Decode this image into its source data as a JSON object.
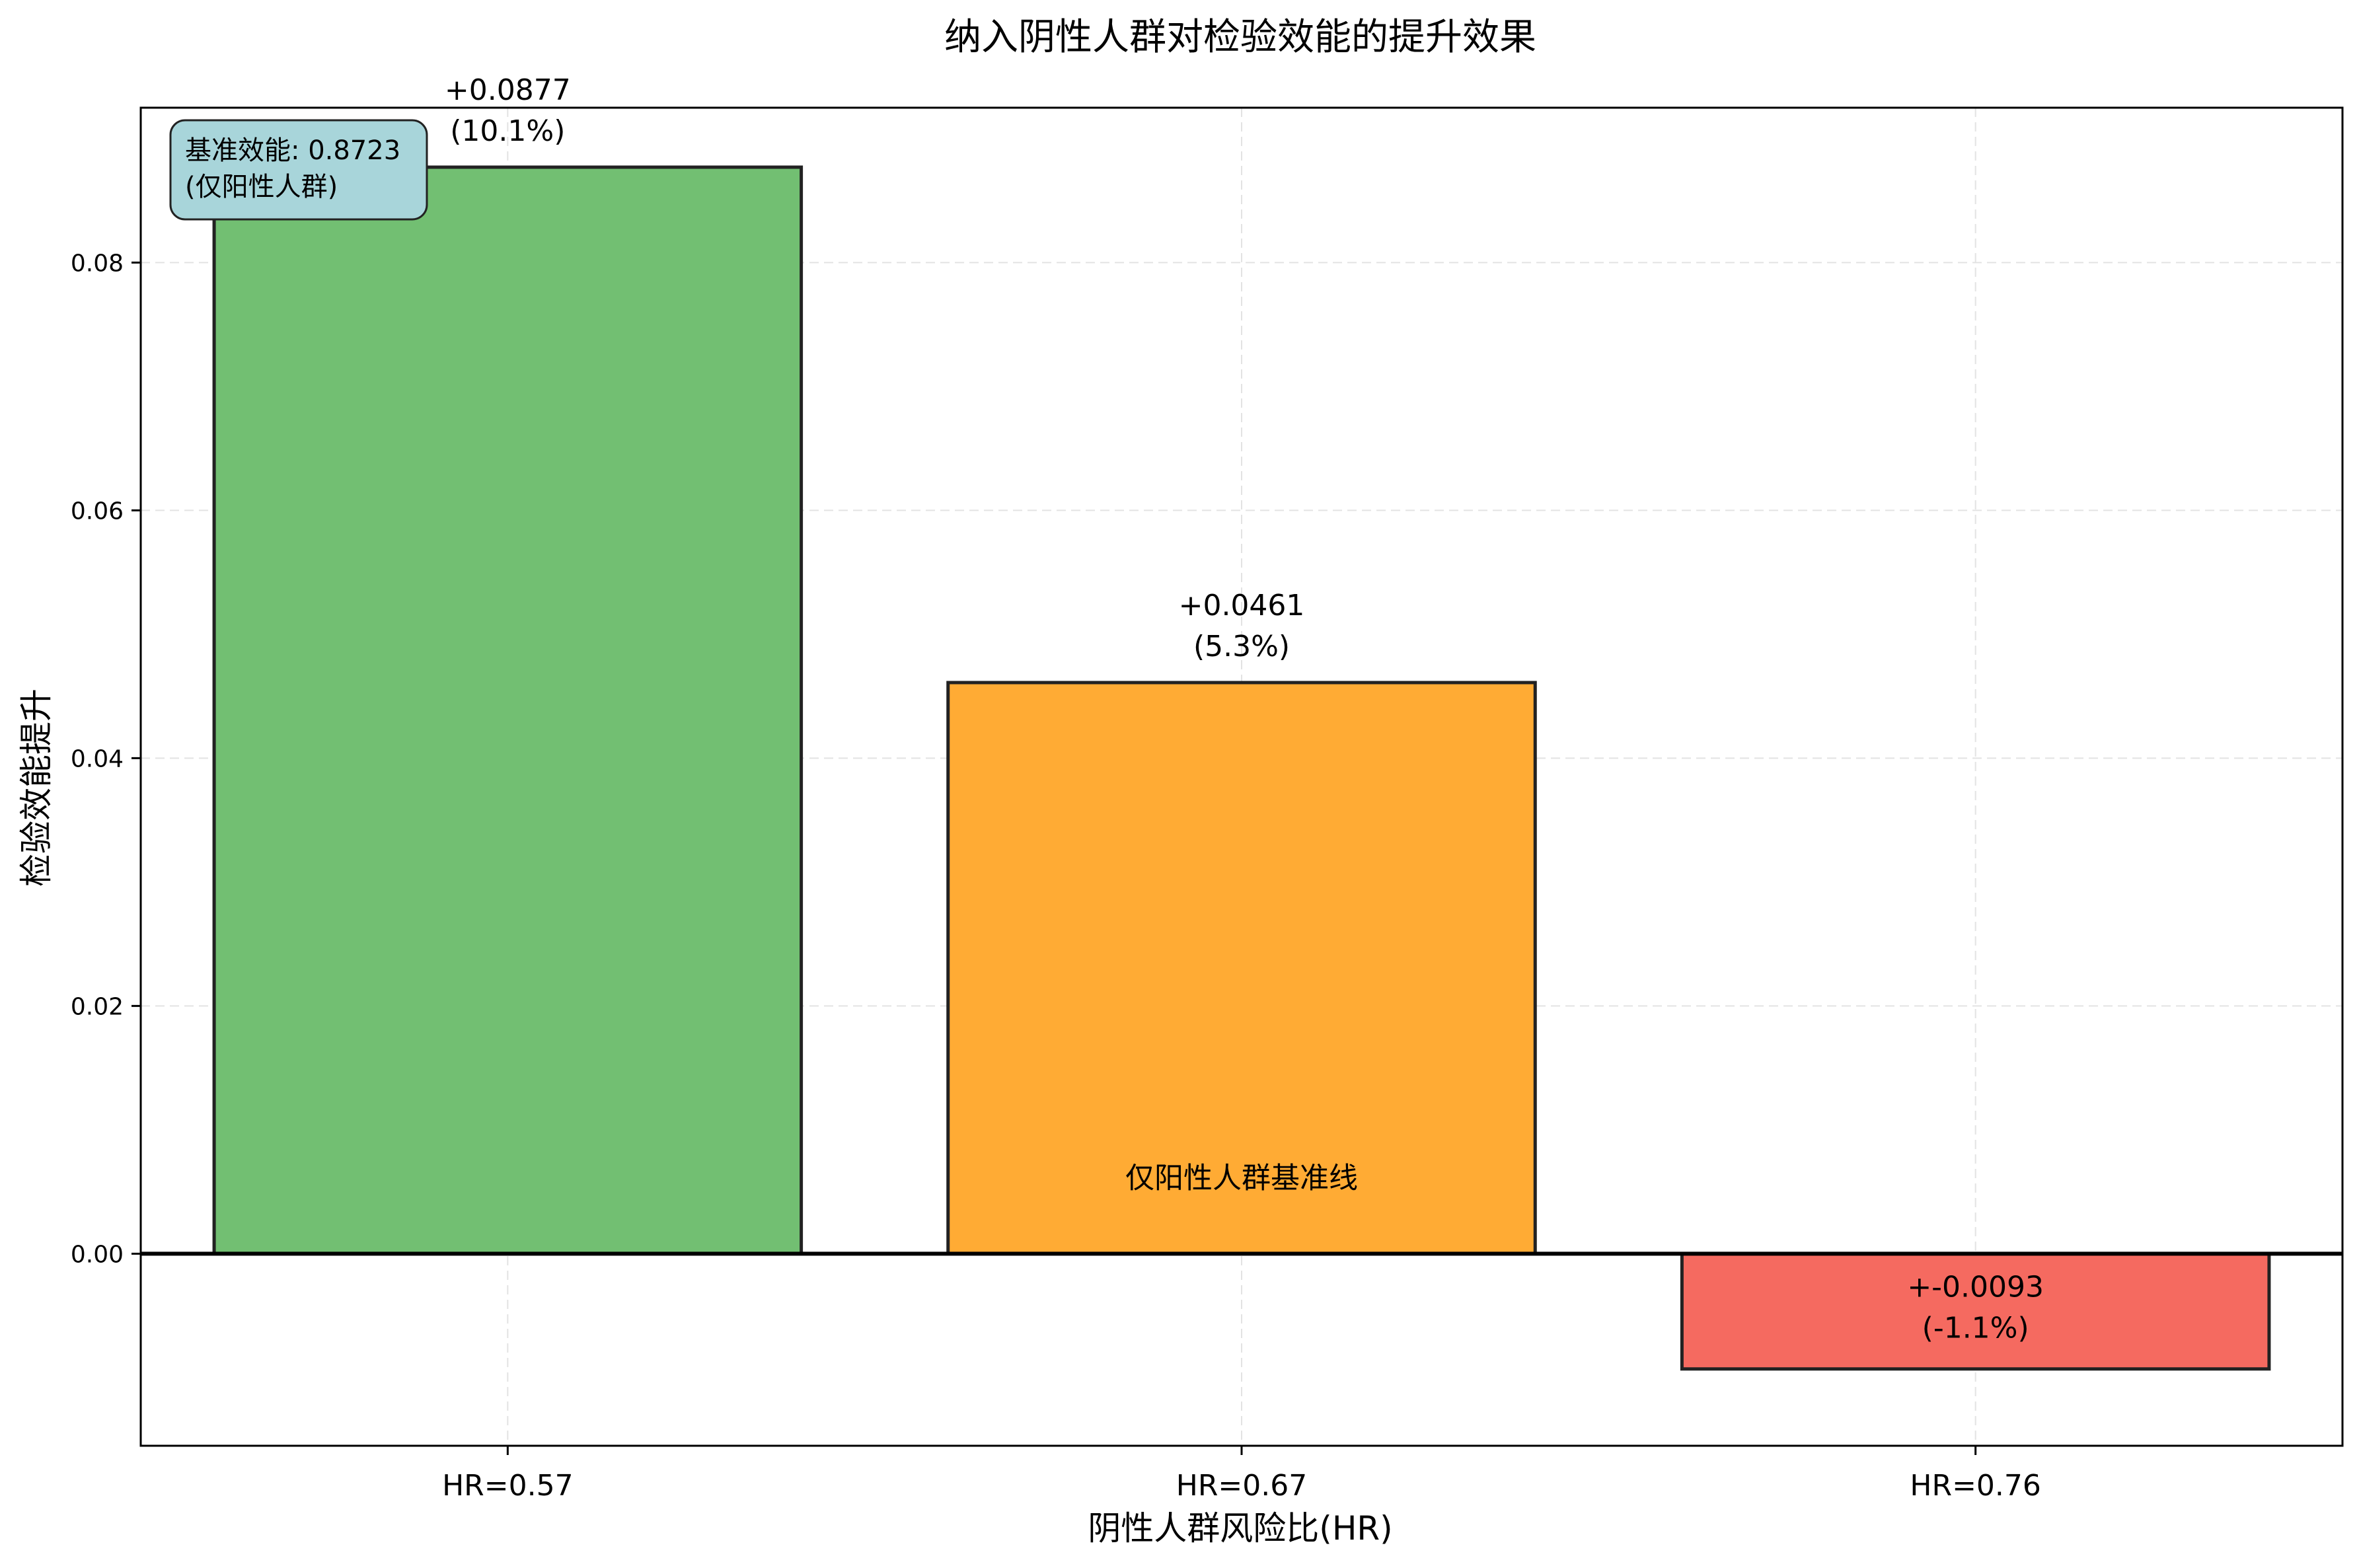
{
  "chart_data": {
    "type": "bar",
    "title": "纳入阴性人群对检验效能的提升效果",
    "xlabel": "阴性人群风险比(HR)",
    "ylabel": "检验效能提升",
    "categories": [
      "HR=0.57",
      "HR=0.67",
      "HR=0.76"
    ],
    "values": [
      0.0877,
      0.0461,
      -0.0093
    ],
    "bar_labels": [
      [
        "+0.0877",
        "(10.1%)"
      ],
      [
        "+0.0461",
        "(5.3%)"
      ],
      [
        "+-0.0093",
        "(-1.1%)"
      ]
    ],
    "bar_colors": [
      "#72BF72",
      "#FFAB34",
      "#F56A60"
    ],
    "ylim": [
      -0.0155,
      0.0925
    ],
    "yticks": [
      0.0,
      0.02,
      0.04,
      0.06,
      0.08
    ],
    "ytick_labels": [
      "0.00",
      "0.02",
      "0.04",
      "0.06",
      "0.08"
    ],
    "grid": true,
    "baseline": {
      "value": 0.0,
      "label": "仅阳性人群基准线"
    },
    "info_box": {
      "line1": "基准效能: 0.8723",
      "line2": "(仅阳性人群)",
      "color": "#A8D5DA"
    }
  }
}
